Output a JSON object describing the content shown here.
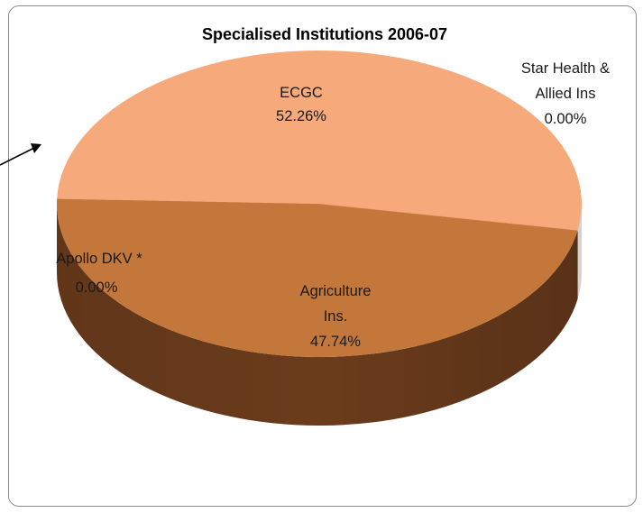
{
  "chart_data": {
    "type": "pie",
    "three_d": true,
    "title": "Specialised Institutions 2006-07",
    "slices": [
      {
        "name": "ECGC",
        "label_lines": [
          "ECGC",
          "52.26%"
        ],
        "value": 52.26,
        "color": "#f6aa7b",
        "side_color": "#b8754b"
      },
      {
        "name": "Star Health & Allied Ins",
        "label_lines": [
          "Star Health &",
          "Allied Ins",
          "0.00%"
        ],
        "value": 0.0,
        "color": "#e69a66",
        "side_color": "#8f5a33"
      },
      {
        "name": "Agriculture Ins.",
        "label_lines": [
          "Agriculture",
          "Ins.",
          "47.74%"
        ],
        "value": 47.74,
        "color": "#c4773b",
        "side_color": "#6b3c1c"
      },
      {
        "name": "Apollo DKV *",
        "label_lines": [
          "Apollo DKV *",
          "0.00%"
        ],
        "value": 0.0,
        "color": "#d98c52",
        "side_color": "#7a4a28"
      }
    ],
    "legend": "none"
  }
}
